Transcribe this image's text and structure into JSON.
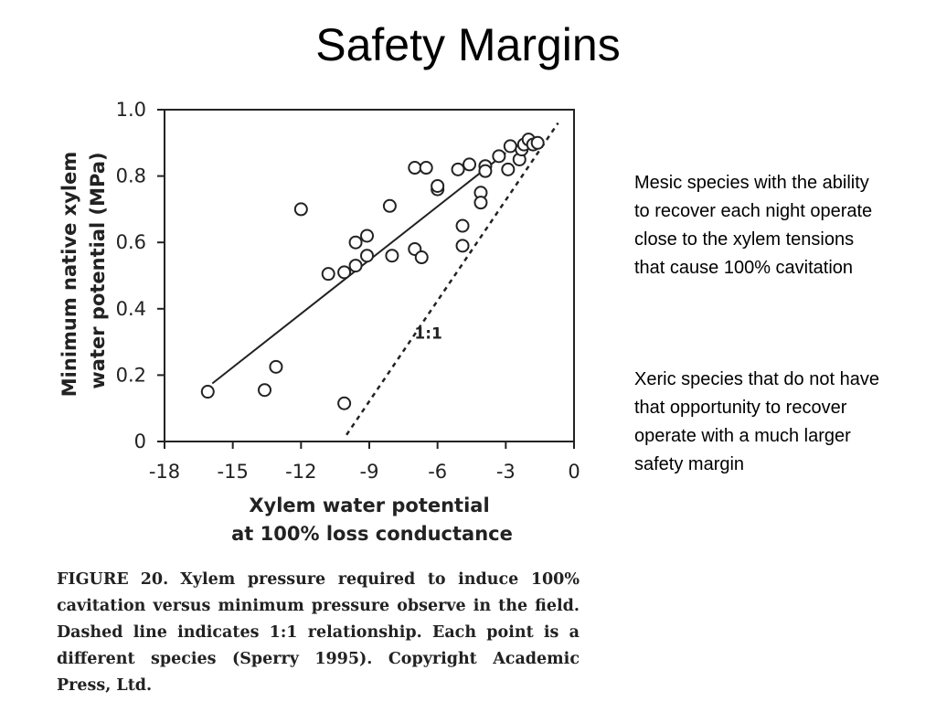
{
  "slide": {
    "title": "Safety Margins"
  },
  "notes": [
    "Mesic species with the ability to recover each night operate close to the xylem tensions that cause 100% cavitation",
    "Xeric species that do not have that opportunity to recover operate with a much larger safety margin"
  ],
  "caption": {
    "label": "FIGURE",
    "number": "20.",
    "text": "Xylem pressure required to induce 100% cavitation versus minimum pressure observe in the field. Dashed line indicates 1:1 relationship. Each point is a different species (Sperry 1995). Copyright Academic Press, Ltd."
  },
  "chart_data": {
    "type": "scatter",
    "xlabel_line1": "Xylem water potential",
    "xlabel_line2": "at 100% loss conductance",
    "ylabel_line1": "Minimum native xylem",
    "ylabel_line2": "water potential (MPa)",
    "xlim": [
      -18,
      0
    ],
    "ylim": [
      0,
      1.0
    ],
    "x_ticks": [
      -18,
      -15,
      -12,
      -9,
      -6,
      -3,
      0
    ],
    "x_tick_labels": [
      "-18",
      "-15",
      "-12",
      "-9",
      "-6",
      "-3",
      "0"
    ],
    "y_ticks": [
      0,
      0.2,
      0.4,
      0.6,
      0.8,
      1.0
    ],
    "y_tick_labels": [
      "0",
      "0.2",
      "0.4",
      "0.6",
      "0.8",
      "1.0"
    ],
    "grid": false,
    "points": [
      {
        "x": -16.1,
        "y": 0.15
      },
      {
        "x": -13.6,
        "y": 0.155
      },
      {
        "x": -13.1,
        "y": 0.225
      },
      {
        "x": -12.0,
        "y": 0.7
      },
      {
        "x": -10.1,
        "y": 0.115
      },
      {
        "x": -10.8,
        "y": 0.505
      },
      {
        "x": -10.1,
        "y": 0.51
      },
      {
        "x": -9.6,
        "y": 0.53
      },
      {
        "x": -9.6,
        "y": 0.6
      },
      {
        "x": -9.1,
        "y": 0.56
      },
      {
        "x": -9.1,
        "y": 0.62
      },
      {
        "x": -8.1,
        "y": 0.71
      },
      {
        "x": -8.0,
        "y": 0.56
      },
      {
        "x": -7.0,
        "y": 0.58
      },
      {
        "x": -6.7,
        "y": 0.555
      },
      {
        "x": -7.0,
        "y": 0.825
      },
      {
        "x": -6.5,
        "y": 0.825
      },
      {
        "x": -6.0,
        "y": 0.76
      },
      {
        "x": -6.0,
        "y": 0.77
      },
      {
        "x": -5.1,
        "y": 0.82
      },
      {
        "x": -4.6,
        "y": 0.835
      },
      {
        "x": -4.9,
        "y": 0.65
      },
      {
        "x": -4.9,
        "y": 0.59
      },
      {
        "x": -4.1,
        "y": 0.75
      },
      {
        "x": -4.1,
        "y": 0.72
      },
      {
        "x": -3.9,
        "y": 0.83
      },
      {
        "x": -3.9,
        "y": 0.815
      },
      {
        "x": -3.3,
        "y": 0.86
      },
      {
        "x": -2.9,
        "y": 0.82
      },
      {
        "x": -2.8,
        "y": 0.89
      },
      {
        "x": -2.4,
        "y": 0.85
      },
      {
        "x": -2.3,
        "y": 0.88
      },
      {
        "x": -2.2,
        "y": 0.895
      },
      {
        "x": -2.0,
        "y": 0.91
      },
      {
        "x": -1.8,
        "y": 0.895
      },
      {
        "x": -1.6,
        "y": 0.9
      }
    ],
    "fit_line": {
      "x": [
        -15.9,
        -3.0
      ],
      "y": [
        0.175,
        0.87
      ]
    },
    "reference_line": {
      "label": "1:1",
      "style": "dashed",
      "x": [
        -10.0,
        -0.7
      ],
      "y": [
        0.02,
        0.96
      ]
    },
    "reference_label_position": {
      "x": -6.0,
      "y": 0.31
    }
  }
}
